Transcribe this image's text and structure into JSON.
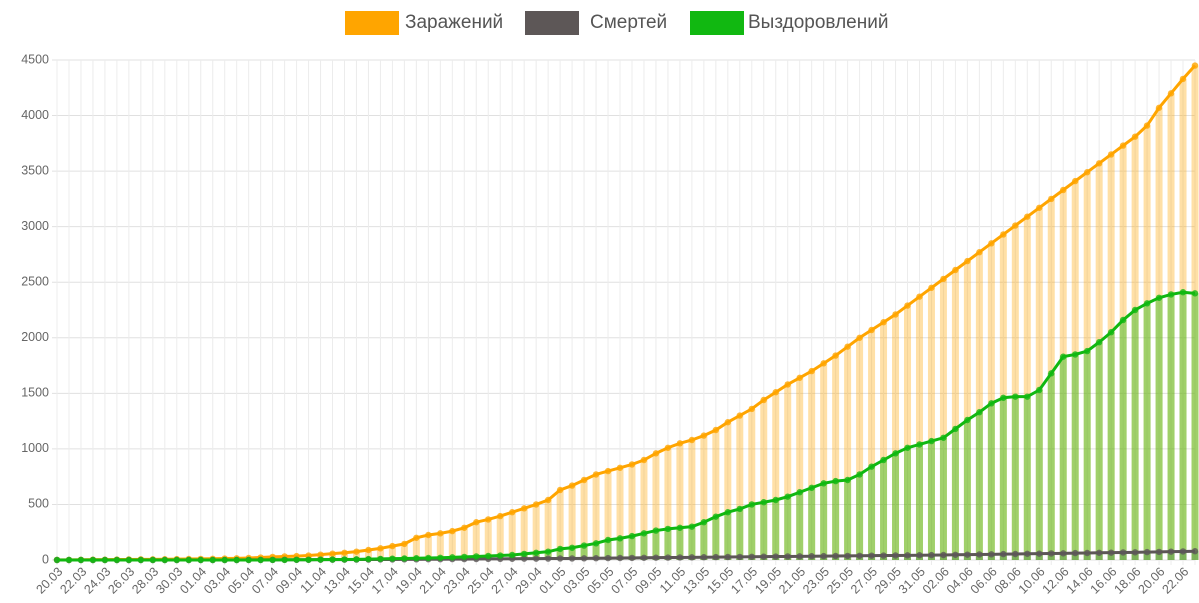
{
  "chart_data": {
    "type": "bar-line",
    "categories": [
      "20.03",
      null,
      "22.03",
      null,
      "24.03",
      null,
      "26.03",
      null,
      "28.03",
      null,
      "30.03",
      null,
      "01.04",
      null,
      "03.04",
      null,
      "05.04",
      null,
      "07.04",
      null,
      "09.04",
      null,
      "11.04",
      null,
      "13.04",
      null,
      "15.04",
      null,
      "17.04",
      null,
      "19.04",
      null,
      "21.04",
      null,
      "23.04",
      null,
      "25.04",
      null,
      "27.04",
      null,
      "29.04",
      null,
      "01.05",
      null,
      "03.05",
      null,
      "05.05",
      null,
      "07.05",
      null,
      "09.05",
      null,
      "11.05",
      null,
      "13.05",
      null,
      "15.05",
      null,
      "17.05",
      null,
      "19.05",
      null,
      "21.05",
      null,
      "23.05",
      null,
      "25.05",
      null,
      "27.05",
      null,
      "29.05",
      null,
      "31.05",
      null,
      "02.06",
      null,
      "04.06",
      null,
      "06.06",
      null,
      "08.06",
      null,
      "10.06",
      null,
      "12.06",
      null,
      "14.06",
      null,
      "16.06",
      null,
      "18.06",
      null,
      "20.06",
      null,
      "22.06",
      null
    ],
    "series": [
      {
        "name": "Заражений",
        "color": "#ffa500",
        "values": [
          1,
          1,
          2,
          3,
          3,
          4,
          5,
          6,
          6,
          7,
          8,
          9,
          10,
          11,
          13,
          15,
          18,
          22,
          28,
          32,
          35,
          40,
          48,
          57,
          65,
          75,
          90,
          105,
          125,
          145,
          200,
          225,
          240,
          260,
          290,
          340,
          365,
          395,
          430,
          465,
          500,
          540,
          630,
          670,
          720,
          770,
          800,
          830,
          860,
          900,
          960,
          1010,
          1050,
          1080,
          1120,
          1170,
          1240,
          1300,
          1360,
          1440,
          1510,
          1580,
          1640,
          1700,
          1770,
          1840,
          1920,
          2000,
          2070,
          2140,
          2210,
          2290,
          2370,
          2450,
          2530,
          2610,
          2690,
          2770,
          2850,
          2930,
          3010,
          3090,
          3170,
          3250,
          3330,
          3410,
          3490,
          3570,
          3650,
          3730,
          3810,
          3910,
          4070,
          4200,
          4330,
          4450
        ]
      },
      {
        "name": "Смертей",
        "color": "#5d5757",
        "values": [
          0,
          0,
          0,
          0,
          0,
          0,
          0,
          0,
          0,
          0,
          0,
          0,
          0,
          0,
          0,
          0,
          1,
          1,
          1,
          2,
          2,
          2,
          3,
          3,
          3,
          4,
          4,
          5,
          5,
          6,
          6,
          7,
          7,
          8,
          8,
          9,
          10,
          10,
          11,
          12,
          12,
          13,
          14,
          14,
          15,
          16,
          17,
          18,
          19,
          20,
          21,
          22,
          23,
          24,
          25,
          26,
          27,
          28,
          29,
          30,
          31,
          32,
          33,
          34,
          35,
          36,
          37,
          38,
          39,
          40,
          41,
          42,
          43,
          44,
          45,
          47,
          48,
          50,
          51,
          53,
          54,
          56,
          57,
          59,
          60,
          62,
          63,
          65,
          66,
          68,
          69,
          71,
          73,
          75,
          77,
          79
        ]
      },
      {
        "name": "Выздоровлений",
        "color": "#11b811",
        "values": [
          0,
          0,
          0,
          0,
          0,
          0,
          0,
          0,
          0,
          0,
          0,
          0,
          0,
          0,
          0,
          0,
          0,
          0,
          1,
          1,
          2,
          2,
          3,
          4,
          5,
          6,
          8,
          10,
          12,
          14,
          16,
          18,
          20,
          24,
          28,
          32,
          36,
          40,
          45,
          55,
          65,
          75,
          100,
          110,
          130,
          150,
          180,
          195,
          215,
          240,
          265,
          280,
          290,
          300,
          340,
          390,
          430,
          460,
          500,
          520,
          540,
          570,
          610,
          650,
          690,
          710,
          720,
          770,
          840,
          900,
          960,
          1010,
          1040,
          1070,
          1100,
          1180,
          1260,
          1330,
          1410,
          1460,
          1470,
          1470,
          1530,
          1680,
          1830,
          1850,
          1880,
          1960,
          2050,
          2160,
          2250,
          2310,
          2360,
          2390,
          2410,
          2400
        ]
      }
    ],
    "ylim": [
      0,
      4500
    ],
    "yticks": [
      0,
      500,
      1000,
      1500,
      2000,
      2500,
      3000,
      3500,
      4000,
      4500
    ],
    "grid": true
  }
}
